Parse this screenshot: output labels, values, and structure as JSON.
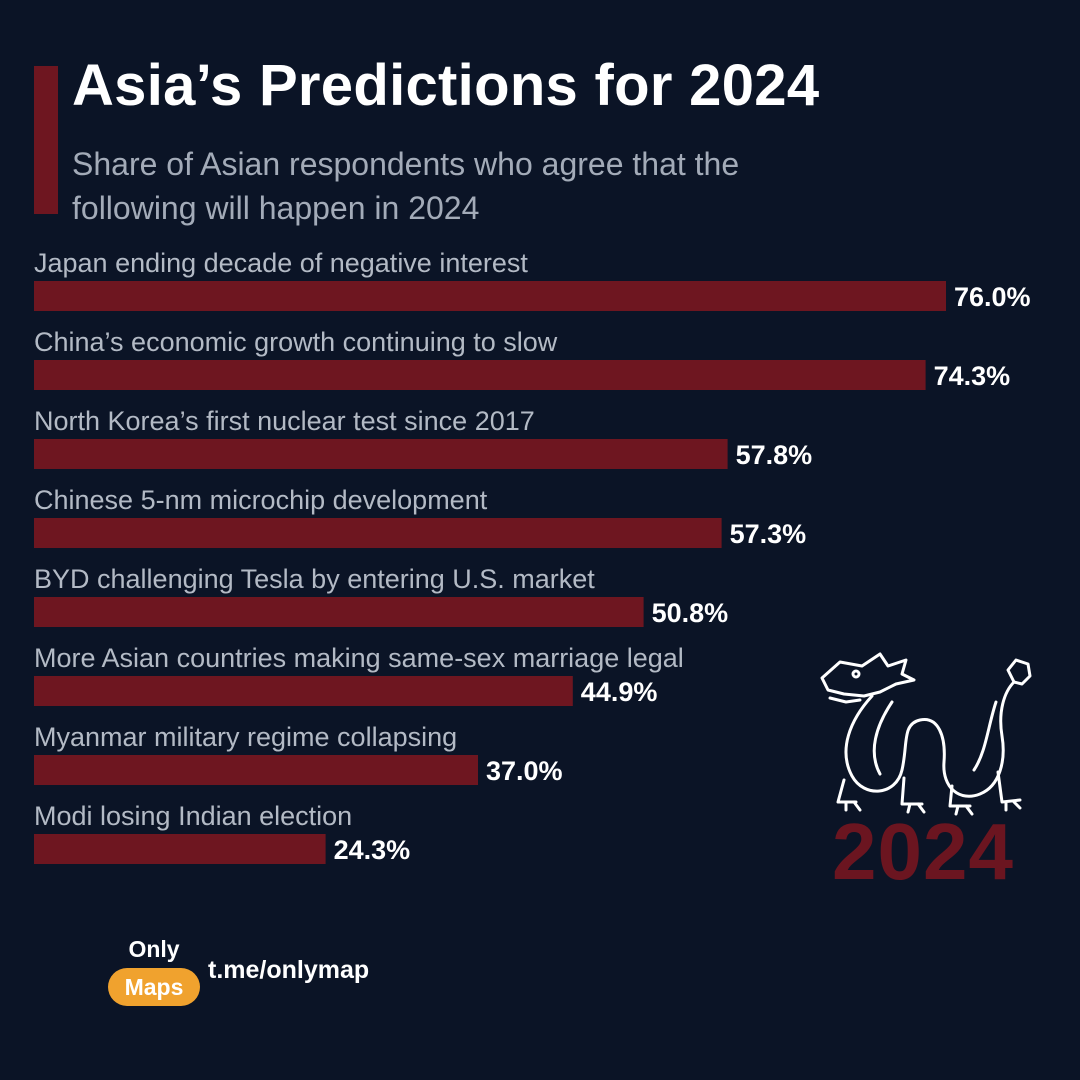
{
  "header": {
    "title": "Asia’s Predictions for 2024",
    "subtitle": "Share of Asian respondents who agree that the following will happen in 2024"
  },
  "colors": {
    "background": "#0b1426",
    "bar": "#6e1620",
    "title": "#ffffff",
    "category_label": "#b3bac5",
    "value_label": "#ffffff",
    "logo_badge": "#f0a22e"
  },
  "chart_data": {
    "type": "bar",
    "orientation": "horizontal",
    "categories": [
      "Japan ending decade of negative interest",
      "China’s economic growth continuing to slow",
      "North Korea’s first nuclear test since 2017",
      "Chinese 5-nm microchip development",
      "BYD challenging Tesla by entering U.S. market",
      "More Asian countries making same-sex marriage legal",
      "Myanmar military regime collapsing",
      "Modi losing Indian election"
    ],
    "values": [
      76.0,
      74.3,
      57.8,
      57.3,
      50.8,
      44.9,
      37.0,
      24.3
    ],
    "value_labels": [
      "76.0%",
      "74.3%",
      "57.8%",
      "57.3%",
      "50.8%",
      "44.9%",
      "37.0%",
      "24.3%"
    ],
    "xlim": [
      0,
      76
    ],
    "grid": false,
    "legend": "none"
  },
  "decoration": {
    "illustration_icon": "dragon-outline-icon",
    "year_text": "2024"
  },
  "footer": {
    "logo_top": "Only",
    "logo_bottom": "Maps",
    "channel": "t.me/onlymap"
  }
}
